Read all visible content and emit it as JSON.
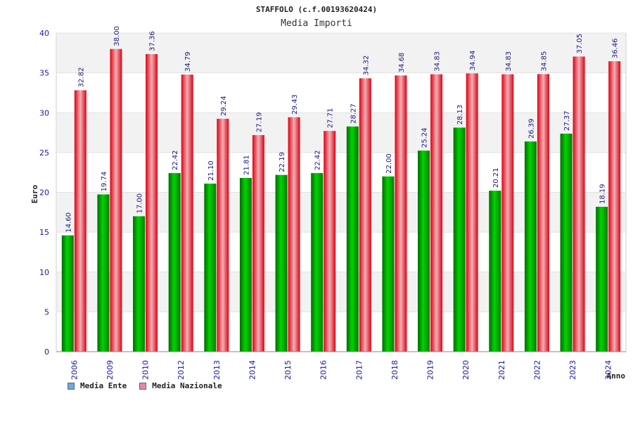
{
  "chart_data": {
    "type": "bar",
    "title": "STAFFOLO (c.f.00193620424)",
    "subtitle": "Media Importi",
    "ylabel": "Euro",
    "xlabel": "Anno",
    "ylim": [
      0,
      40
    ],
    "yticks": [
      0,
      5,
      10,
      15,
      20,
      25,
      30,
      35,
      40
    ],
    "categories": [
      "2006",
      "2009",
      "2010",
      "2012",
      "2013",
      "2014",
      "2015",
      "2016",
      "2017",
      "2018",
      "2019",
      "2020",
      "2021",
      "2022",
      "2023",
      "2024"
    ],
    "series": [
      {
        "name": "Media Ente",
        "color": "#00a000",
        "labels": [
          "14.60",
          "19.74",
          "17.00",
          "22.42",
          "21.10",
          "21.81",
          "22.19",
          "22.42",
          "28.27",
          "22.00",
          "25.24",
          "28.13",
          "20.21",
          "26.39",
          "27.37",
          "18.19"
        ],
        "values": [
          14.6,
          19.74,
          17.0,
          22.42,
          21.1,
          21.81,
          22.19,
          22.42,
          28.27,
          22.0,
          25.24,
          28.13,
          20.21,
          26.39,
          27.37,
          18.19
        ]
      },
      {
        "name": "Media Nazionale",
        "color": "#e01020",
        "labels": [
          "32.82",
          "38.00",
          "37.36",
          "34.79",
          "29.24",
          "27.19",
          "29.43",
          "27.71",
          "34.32",
          "34.68",
          "34.83",
          "34.94",
          "34.83",
          "34.85",
          "37.05",
          "36.46"
        ],
        "values": [
          32.82,
          38.0,
          37.36,
          34.79,
          29.24,
          27.19,
          29.43,
          27.71,
          34.32,
          34.68,
          34.83,
          34.94,
          34.83,
          34.85,
          37.05,
          36.46
        ]
      }
    ],
    "legend": [
      {
        "label": "Media Ente",
        "color": "#6aa8e8"
      },
      {
        "label": "Media Nazionale",
        "color": "#e08ab0"
      }
    ]
  }
}
